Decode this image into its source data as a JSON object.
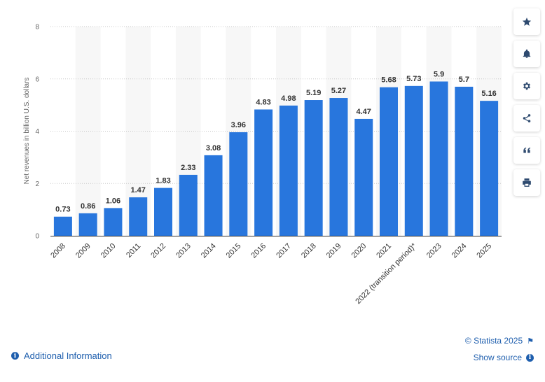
{
  "chart_data": {
    "type": "bar",
    "categories": [
      "2008",
      "2009",
      "2010",
      "2011",
      "2012",
      "2013",
      "2014",
      "2015",
      "2016",
      "2017",
      "2018",
      "2019",
      "2020",
      "2021",
      "2022 (transition period)*",
      "2023",
      "2024",
      "2025"
    ],
    "values": [
      0.73,
      0.86,
      1.06,
      1.47,
      1.83,
      2.33,
      3.08,
      3.96,
      4.83,
      4.98,
      5.19,
      5.27,
      4.47,
      5.68,
      5.73,
      5.9,
      5.7,
      5.16
    ],
    "value_labels": [
      "0.73",
      "0.86",
      "1.06",
      "1.47",
      "1.83",
      "2.33",
      "3.08",
      "3.96",
      "4.83",
      "4.98",
      "5.19",
      "5.27",
      "4.47",
      "5.68",
      "5.73",
      "5.9",
      "5.7",
      "5.16"
    ],
    "ylabel": "Net revenues in billion U.S. dollars",
    "ylim": [
      0,
      8
    ],
    "yticks": [
      "0",
      "2",
      "4",
      "6",
      "8"
    ],
    "grid": true,
    "bar_color": "#2876dd",
    "band_color": "#f7f7f7",
    "legend": "none"
  },
  "toolbar": {
    "items": [
      {
        "name": "favorite-button",
        "icon": "star-icon"
      },
      {
        "name": "notification-button",
        "icon": "bell-icon"
      },
      {
        "name": "settings-button",
        "icon": "gear-icon"
      },
      {
        "name": "share-button",
        "icon": "share-icon"
      },
      {
        "name": "cite-button",
        "icon": "quote-icon"
      },
      {
        "name": "print-button",
        "icon": "printer-icon"
      }
    ]
  },
  "footer": {
    "additional_info": "Additional Information",
    "copyright": "© Statista 2025",
    "show_source": "Show source"
  }
}
